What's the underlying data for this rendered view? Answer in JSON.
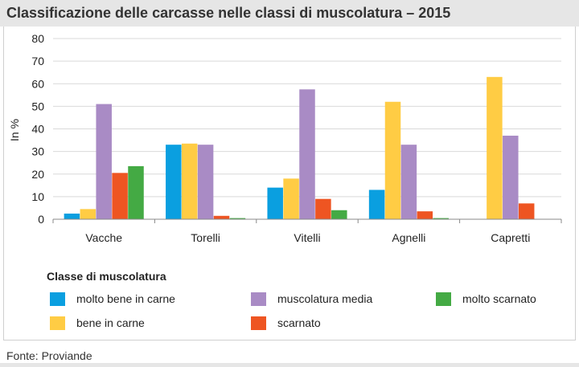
{
  "title": "Classificazione delle carcasse nelle classi di muscolatura – 2015",
  "source": "Fonte: Proviande",
  "chart_data": {
    "type": "bar",
    "title": "Classificazione delle carcasse nelle classi di muscolatura – 2015",
    "ylabel": "In %",
    "xlabel": "",
    "ylim": [
      0,
      80
    ],
    "yticks": [
      0,
      10,
      20,
      30,
      40,
      50,
      60,
      70,
      80
    ],
    "grid": true,
    "legend_title": "Classe di muscolatura",
    "legend_position": "bottom",
    "categories": [
      "Vacche",
      "Torelli",
      "Vitelli",
      "Agnelli",
      "Capretti"
    ],
    "series": [
      {
        "name": "molto bene in carne",
        "color": "#0a9fe0",
        "values": [
          2.5,
          33,
          14,
          13,
          0
        ]
      },
      {
        "name": "bene in carne",
        "color": "#ffcc44",
        "values": [
          4.5,
          33.5,
          18,
          52,
          63
        ]
      },
      {
        "name": "muscolatura media",
        "color": "#a98bc5",
        "values": [
          51,
          33,
          57.5,
          33,
          37
        ]
      },
      {
        "name": "scarnato",
        "color": "#ee5522",
        "values": [
          20.5,
          1.5,
          9,
          3.5,
          7
        ]
      },
      {
        "name": "molto scarnato",
        "color": "#44aa44",
        "values": [
          23.5,
          0.5,
          4,
          0.5,
          0
        ]
      }
    ]
  }
}
